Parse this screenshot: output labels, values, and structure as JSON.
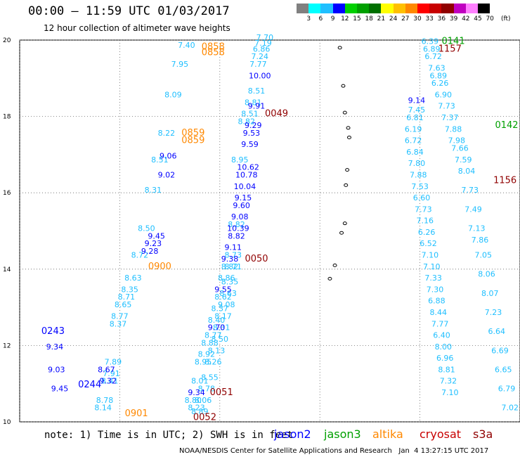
{
  "header": {
    "title": "00:00 – 11:59 UTC 01/03/2017",
    "subtitle": "12 hour collection of altimeter wave heights"
  },
  "legend": {
    "unit": "(ft)",
    "labels": [
      "3",
      "6",
      "9",
      "12",
      "15",
      "18",
      "21",
      "24",
      "27",
      "30",
      "33",
      "36",
      "39",
      "42",
      "45",
      "70"
    ],
    "colors": [
      "#808080",
      "#00ffff",
      "#1fbfff",
      "#0000ff",
      "#00d000",
      "#00a000",
      "#007000",
      "#ffff00",
      "#ffc000",
      "#ff8800",
      "#ff0000",
      "#c80000",
      "#900000",
      "#c000c0",
      "#ff80ff",
      "#000000"
    ]
  },
  "note": "note: 1) Time is in UTC; 2) SWH is in feet",
  "satellites": [
    {
      "name": "jason2",
      "color": "#0000ff"
    },
    {
      "name": "jason3",
      "color": "#00a000"
    },
    {
      "name": "altika",
      "color": "#ff8800"
    },
    {
      "name": "cryosat",
      "color": "#c80000"
    },
    {
      "name": "s3a",
      "color": "#900000"
    }
  ],
  "footer": "NOAA/NESDIS Center for Satellite Applications and Research   Jan  4 13:27:15 UTC 2017",
  "chart_data": {
    "type": "scatter",
    "title": "00:00 – 11:59 UTC 01/03/2017",
    "subtitle": "12 hour collection of altimeter wave heights",
    "xlim": [
      135,
      150
    ],
    "ylim": [
      10,
      20
    ],
    "x_ticks": [
      "135",
      "138",
      "141",
      "144",
      "147",
      "150"
    ],
    "y_ticks": [
      "10",
      "12",
      "14",
      "16",
      "18",
      "20"
    ],
    "grid": true,
    "tracks": [
      {
        "color": "#1fbfff",
        "points": [
          {
            "x": 137.5,
            "y": 10.3,
            "label": "8.14"
          },
          {
            "x": 137.55,
            "y": 10.5,
            "label": "8.78"
          },
          {
            "x": 137.7,
            "y": 11.0,
            "label": "8.41"
          },
          {
            "x": 137.75,
            "y": 11.2,
            "label": "7.91"
          },
          {
            "x": 137.8,
            "y": 11.5,
            "label": "7.89"
          },
          {
            "x": 137.95,
            "y": 12.5,
            "label": "8.37"
          },
          {
            "x": 138.0,
            "y": 12.7,
            "label": "8.77"
          },
          {
            "x": 138.1,
            "y": 13.0,
            "label": "8.65"
          },
          {
            "x": 138.2,
            "y": 13.2,
            "label": "8.71"
          },
          {
            "x": 138.3,
            "y": 13.4,
            "label": "8.35"
          },
          {
            "x": 138.4,
            "y": 13.7,
            "label": "8.63"
          },
          {
            "x": 138.6,
            "y": 14.3,
            "label": "8.72"
          },
          {
            "x": 138.8,
            "y": 15.0,
            "label": "8.50"
          },
          {
            "x": 139.0,
            "y": 16.0,
            "label": "8.31"
          },
          {
            "x": 139.2,
            "y": 16.8,
            "label": "8.51"
          },
          {
            "x": 139.4,
            "y": 17.5,
            "label": "8.22"
          },
          {
            "x": 139.6,
            "y": 18.5,
            "label": "8.09"
          },
          {
            "x": 139.8,
            "y": 19.3,
            "label": "7.95"
          },
          {
            "x": 140.0,
            "y": 19.8,
            "label": "7.40"
          }
        ]
      },
      {
        "color": "#1fbfff",
        "points": [
          {
            "x": 140.4,
            "y": 10.2,
            "label": "8.89"
          },
          {
            "x": 140.5,
            "y": 10.5,
            "label": "8.06"
          },
          {
            "x": 140.6,
            "y": 10.8,
            "label": "8.78"
          },
          {
            "x": 140.7,
            "y": 11.1,
            "label": "8.55"
          },
          {
            "x": 140.8,
            "y": 11.5,
            "label": "8.26"
          },
          {
            "x": 140.9,
            "y": 11.8,
            "label": "8.13"
          },
          {
            "x": 141.0,
            "y": 12.1,
            "label": "8.50"
          },
          {
            "x": 141.05,
            "y": 12.4,
            "label": "8.31"
          },
          {
            "x": 141.1,
            "y": 12.7,
            "label": "8.17"
          },
          {
            "x": 141.2,
            "y": 13.0,
            "label": "9.08"
          },
          {
            "x": 141.25,
            "y": 13.3,
            "label": "8.63"
          },
          {
            "x": 141.3,
            "y": 13.6,
            "label": "8.35"
          },
          {
            "x": 141.4,
            "y": 14.0,
            "label": "8.71"
          }
        ]
      },
      {
        "color": "#0000ff",
        "points": [
          {
            "x": 136.05,
            "y": 11.9,
            "label": "9.34"
          },
          {
            "x": 136.1,
            "y": 11.3,
            "label": "9.03"
          },
          {
            "x": 136.2,
            "y": 10.8,
            "label": "9.45"
          },
          {
            "x": 137.6,
            "y": 11.3,
            "label": "8.67"
          },
          {
            "x": 137.65,
            "y": 11.0,
            "label": "9.32"
          },
          {
            "x": 139.1,
            "y": 14.8,
            "label": "9.45"
          },
          {
            "x": 139.0,
            "y": 14.6,
            "label": "9.23"
          },
          {
            "x": 138.9,
            "y": 14.4,
            "label": "9.28"
          },
          {
            "x": 139.4,
            "y": 16.4,
            "label": "9.02"
          },
          {
            "x": 139.45,
            "y": 16.9,
            "label": "9.06"
          }
        ]
      },
      {
        "color": "#1fbfff",
        "points": [
          {
            "x": 140.2,
            "y": 10.5,
            "label": "8.80"
          },
          {
            "x": 140.3,
            "y": 10.3,
            "label": "8.23"
          },
          {
            "x": 140.4,
            "y": 11.0,
            "label": "8.01"
          },
          {
            "x": 140.5,
            "y": 11.5,
            "label": "8.95"
          },
          {
            "x": 140.6,
            "y": 11.7,
            "label": "8.92"
          },
          {
            "x": 140.7,
            "y": 12.0,
            "label": "8.88"
          },
          {
            "x": 140.8,
            "y": 12.2,
            "label": "8.77"
          },
          {
            "x": 140.9,
            "y": 12.6,
            "label": "8.40"
          },
          {
            "x": 141.0,
            "y": 12.9,
            "label": "8.37"
          },
          {
            "x": 141.1,
            "y": 13.2,
            "label": "8.62"
          },
          {
            "x": 141.2,
            "y": 13.7,
            "label": "8.86"
          },
          {
            "x": 141.3,
            "y": 14.0,
            "label": "8.82"
          },
          {
            "x": 141.4,
            "y": 14.3,
            "label": "8.73"
          },
          {
            "x": 141.5,
            "y": 15.1,
            "label": "8.82"
          },
          {
            "x": 141.6,
            "y": 16.8,
            "label": "8.95"
          },
          {
            "x": 141.8,
            "y": 17.8,
            "label": "8.82"
          },
          {
            "x": 141.9,
            "y": 18.0,
            "label": "8.51"
          },
          {
            "x": 142.0,
            "y": 18.3,
            "label": "8.81"
          },
          {
            "x": 142.1,
            "y": 18.6,
            "label": "8.51"
          },
          {
            "x": 142.2,
            "y": 19.5,
            "label": "7.24"
          },
          {
            "x": 142.25,
            "y": 19.7,
            "label": "6.86"
          },
          {
            "x": 142.3,
            "y": 19.85,
            "label": "7.19"
          },
          {
            "x": 142.35,
            "y": 20.0,
            "label": "7.70"
          },
          {
            "x": 142.15,
            "y": 19.3,
            "label": "7.77"
          }
        ]
      },
      {
        "color": "#0000ff",
        "points": [
          {
            "x": 140.3,
            "y": 10.7,
            "label": "9.34"
          },
          {
            "x": 140.9,
            "y": 12.4,
            "label": "9.70"
          },
          {
            "x": 141.1,
            "y": 13.4,
            "label": "9.55"
          },
          {
            "x": 141.3,
            "y": 14.2,
            "label": "9.38"
          },
          {
            "x": 141.4,
            "y": 14.5,
            "label": "9.11"
          },
          {
            "x": 141.5,
            "y": 14.8,
            "label": "8.82"
          },
          {
            "x": 141.55,
            "y": 15.0,
            "label": "10.39"
          },
          {
            "x": 141.6,
            "y": 15.3,
            "label": "9.08"
          },
          {
            "x": 141.65,
            "y": 15.6,
            "label": "9.60"
          },
          {
            "x": 141.7,
            "y": 15.8,
            "label": "9.15"
          },
          {
            "x": 141.75,
            "y": 16.1,
            "label": "10.04"
          },
          {
            "x": 141.8,
            "y": 16.4,
            "label": "10.78"
          },
          {
            "x": 141.85,
            "y": 16.6,
            "label": "10.62"
          },
          {
            "x": 141.9,
            "y": 17.2,
            "label": "9.59"
          },
          {
            "x": 141.95,
            "y": 17.5,
            "label": "9.53"
          },
          {
            "x": 142.0,
            "y": 17.7,
            "label": "9.29"
          },
          {
            "x": 142.1,
            "y": 18.2,
            "label": "9.91"
          },
          {
            "x": 142.2,
            "y": 19.0,
            "label": "10.00"
          }
        ]
      },
      {
        "color": "#1fbfff",
        "points": [
          {
            "x": 147.3,
            "y": 19.9,
            "label": "6.39"
          },
          {
            "x": 147.35,
            "y": 19.7,
            "label": "6.89"
          },
          {
            "x": 147.4,
            "y": 19.5,
            "label": "6.72"
          },
          {
            "x": 147.5,
            "y": 19.2,
            "label": "7.63"
          },
          {
            "x": 147.55,
            "y": 19.0,
            "label": "6.89"
          },
          {
            "x": 147.6,
            "y": 18.8,
            "label": "6.26"
          },
          {
            "x": 147.7,
            "y": 18.5,
            "label": "6.90"
          },
          {
            "x": 147.8,
            "y": 18.2,
            "label": "7.73"
          },
          {
            "x": 147.9,
            "y": 17.9,
            "label": "7.37"
          },
          {
            "x": 148.0,
            "y": 17.6,
            "label": "7.88"
          },
          {
            "x": 148.1,
            "y": 17.3,
            "label": "7.98"
          },
          {
            "x": 148.2,
            "y": 17.1,
            "label": "7.66"
          },
          {
            "x": 148.3,
            "y": 16.8,
            "label": "7.59"
          },
          {
            "x": 148.4,
            "y": 16.5,
            "label": "8.04"
          },
          {
            "x": 148.5,
            "y": 16.0,
            "label": "7.73"
          },
          {
            "x": 148.6,
            "y": 15.5,
            "label": "7.49"
          },
          {
            "x": 148.7,
            "y": 15.0,
            "label": "7.13"
          },
          {
            "x": 148.8,
            "y": 14.7,
            "label": "7.86"
          },
          {
            "x": 148.9,
            "y": 14.3,
            "label": "7.05"
          },
          {
            "x": 149.0,
            "y": 13.8,
            "label": "8.06"
          },
          {
            "x": 149.1,
            "y": 13.3,
            "label": "8.07"
          },
          {
            "x": 149.2,
            "y": 12.8,
            "label": "7.23"
          },
          {
            "x": 149.3,
            "y": 12.3,
            "label": "6.64"
          },
          {
            "x": 149.4,
            "y": 11.8,
            "label": "6.69"
          },
          {
            "x": 149.5,
            "y": 11.3,
            "label": "6.65"
          },
          {
            "x": 149.6,
            "y": 10.8,
            "label": "6.79"
          },
          {
            "x": 149.7,
            "y": 10.3,
            "label": "7.02"
          }
        ]
      },
      {
        "color": "#1fbfff",
        "points": [
          {
            "x": 146.9,
            "y": 18.1,
            "label": "7.45"
          },
          {
            "x": 146.85,
            "y": 17.9,
            "label": "6.81"
          },
          {
            "x": 146.8,
            "y": 17.6,
            "label": "6.19"
          },
          {
            "x": 146.8,
            "y": 17.3,
            "label": "6.72"
          },
          {
            "x": 146.85,
            "y": 17.0,
            "label": "6.84"
          },
          {
            "x": 146.9,
            "y": 16.7,
            "label": "7.80"
          },
          {
            "x": 146.95,
            "y": 16.4,
            "label": "7.88"
          },
          {
            "x": 147.0,
            "y": 16.1,
            "label": "7.53"
          },
          {
            "x": 147.05,
            "y": 15.8,
            "label": "6.60"
          },
          {
            "x": 147.1,
            "y": 15.5,
            "label": "7.73"
          },
          {
            "x": 147.15,
            "y": 15.2,
            "label": "7.16"
          },
          {
            "x": 147.2,
            "y": 14.9,
            "label": "6.26"
          },
          {
            "x": 147.25,
            "y": 14.6,
            "label": "6.52"
          },
          {
            "x": 147.3,
            "y": 14.3,
            "label": "7.10"
          },
          {
            "x": 147.35,
            "y": 14.0,
            "label": "7.10"
          },
          {
            "x": 147.4,
            "y": 13.7,
            "label": "7.33"
          },
          {
            "x": 147.45,
            "y": 13.4,
            "label": "7.30"
          },
          {
            "x": 147.5,
            "y": 13.1,
            "label": "6.88"
          },
          {
            "x": 147.55,
            "y": 12.8,
            "label": "8.44"
          },
          {
            "x": 147.6,
            "y": 12.5,
            "label": "7.77"
          },
          {
            "x": 147.65,
            "y": 12.2,
            "label": "6.40"
          },
          {
            "x": 147.7,
            "y": 11.9,
            "label": "8.00"
          },
          {
            "x": 147.75,
            "y": 11.6,
            "label": "6.96"
          },
          {
            "x": 147.8,
            "y": 11.3,
            "label": "8.81"
          },
          {
            "x": 147.85,
            "y": 11.0,
            "label": "7.32"
          },
          {
            "x": 147.9,
            "y": 10.7,
            "label": "7.10"
          }
        ]
      },
      {
        "color": "#0000ff",
        "points": [
          {
            "x": 146.9,
            "y": 18.35,
            "label": "9.14"
          }
        ]
      }
    ],
    "pass_times": [
      {
        "label": "0243",
        "color": "#0000ff",
        "x": 136.0,
        "y": 12.3
      },
      {
        "label": "0244",
        "color": "#0000ff",
        "x": 137.1,
        "y": 10.9
      },
      {
        "label": "0900",
        "color": "#ff8800",
        "x": 139.2,
        "y": 14.0
      },
      {
        "label": "0901",
        "color": "#ff8800",
        "x": 138.5,
        "y": 10.15
      },
      {
        "label": "0859",
        "color": "#ff8800",
        "x": 140.2,
        "y": 17.3
      },
      {
        "label": "0859",
        "color": "#ff8800",
        "x": 140.2,
        "y": 17.5
      },
      {
        "label": "0858",
        "color": "#ff8800",
        "x": 140.8,
        "y": 19.6
      },
      {
        "label": "0858",
        "color": "#ff8800",
        "x": 140.8,
        "y": 19.75
      },
      {
        "label": "0049",
        "color": "#900000",
        "x": 142.7,
        "y": 18.0
      },
      {
        "label": "0050",
        "color": "#900000",
        "x": 142.1,
        "y": 14.2
      },
      {
        "label": "0051",
        "color": "#900000",
        "x": 141.05,
        "y": 10.7
      },
      {
        "label": "0052",
        "color": "#900000",
        "x": 140.55,
        "y": 10.05
      },
      {
        "label": "0141",
        "color": "#00a000",
        "x": 148.0,
        "y": 19.9
      },
      {
        "label": "1157",
        "color": "#900000",
        "x": 147.9,
        "y": 19.7
      },
      {
        "label": "0142",
        "color": "#00a000",
        "x": 149.6,
        "y": 17.7
      },
      {
        "label": "1156",
        "color": "#900000",
        "x": 149.55,
        "y": 16.25
      }
    ],
    "islands": [
      {
        "x": 144.6,
        "y": 19.8
      },
      {
        "x": 144.7,
        "y": 18.8
      },
      {
        "x": 144.75,
        "y": 18.1
      },
      {
        "x": 144.85,
        "y": 17.7
      },
      {
        "x": 144.88,
        "y": 17.45
      },
      {
        "x": 144.82,
        "y": 16.6
      },
      {
        "x": 144.78,
        "y": 16.2
      },
      {
        "x": 144.75,
        "y": 15.2
      },
      {
        "x": 144.65,
        "y": 14.95
      },
      {
        "x": 144.45,
        "y": 14.1
      },
      {
        "x": 144.3,
        "y": 13.75
      }
    ]
  }
}
